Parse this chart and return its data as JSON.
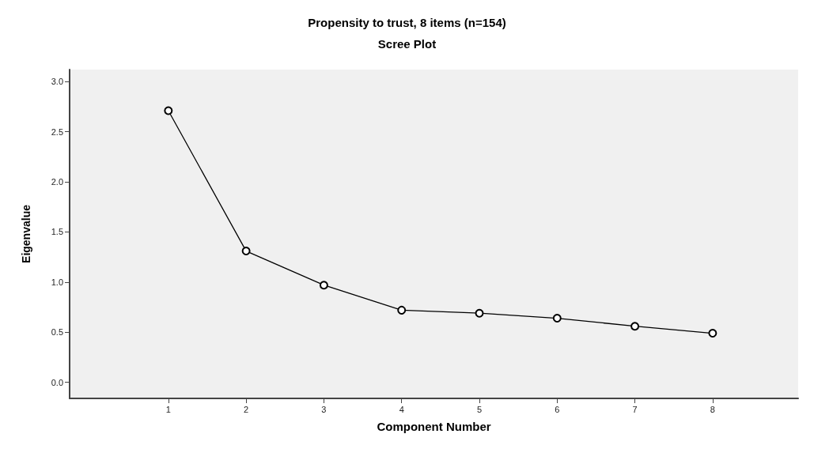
{
  "chart_data": {
    "type": "line",
    "title": "Propensity to trust, 8 items (n=154)",
    "subtitle": "Scree Plot",
    "xlabel": "Component Number",
    "ylabel": "Eigenvalue",
    "x": [
      1,
      2,
      3,
      4,
      5,
      6,
      7,
      8
    ],
    "series": [
      {
        "color": "#000000",
        "values": [
          2.71,
          1.31,
          0.97,
          0.72,
          0.69,
          0.64,
          0.56,
          0.49
        ]
      }
    ],
    "xlim": [
      -0.27,
      9.1
    ],
    "xticks": [
      1,
      2,
      3,
      4,
      5,
      6,
      7,
      8
    ],
    "ylim": [
      -0.16,
      3.12
    ],
    "yticks": [
      {
        "value": 0,
        "label": "0.0"
      },
      {
        "value": 0.5,
        "label": "0.5"
      },
      {
        "value": 1,
        "label": "1.0"
      },
      {
        "value": 1.5,
        "label": "1.5"
      },
      {
        "value": 2,
        "label": "2.0"
      },
      {
        "value": 2.5,
        "label": "2.5"
      },
      {
        "value": 3,
        "label": "3.0"
      }
    ],
    "grid": false,
    "marker": "circle",
    "line_style": "solid"
  }
}
